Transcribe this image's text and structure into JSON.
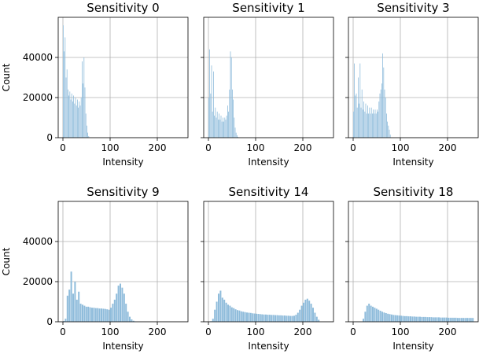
{
  "chart_data": [
    {
      "type": "bar",
      "title": "Sensitivity 0",
      "xlabel": "Intensity",
      "ylabel": "Count",
      "xlim": [
        -10,
        265
      ],
      "ylim": [
        0,
        60000
      ],
      "xticks": [
        "0",
        "100",
        "200"
      ],
      "yticks": [
        "0",
        "20000",
        "40000"
      ],
      "grid": true,
      "bin_width": 2,
      "bins": [
        {
          "x": 0,
          "y": 56000
        },
        {
          "x": 2,
          "y": 43000
        },
        {
          "x": 4,
          "y": 50000
        },
        {
          "x": 6,
          "y": 30000
        },
        {
          "x": 8,
          "y": 34000
        },
        {
          "x": 10,
          "y": 24000
        },
        {
          "x": 12,
          "y": 21000
        },
        {
          "x": 14,
          "y": 23000
        },
        {
          "x": 16,
          "y": 19000
        },
        {
          "x": 18,
          "y": 22000
        },
        {
          "x": 20,
          "y": 18000
        },
        {
          "x": 22,
          "y": 21000
        },
        {
          "x": 24,
          "y": 17000
        },
        {
          "x": 26,
          "y": 20000
        },
        {
          "x": 28,
          "y": 16000
        },
        {
          "x": 30,
          "y": 19000
        },
        {
          "x": 32,
          "y": 15000
        },
        {
          "x": 34,
          "y": 18000
        },
        {
          "x": 36,
          "y": 16000
        },
        {
          "x": 38,
          "y": 20000
        },
        {
          "x": 40,
          "y": 38000
        },
        {
          "x": 42,
          "y": 27000
        },
        {
          "x": 44,
          "y": 40000
        },
        {
          "x": 46,
          "y": 25000
        },
        {
          "x": 48,
          "y": 12000
        },
        {
          "x": 50,
          "y": 6000
        },
        {
          "x": 52,
          "y": 2500
        },
        {
          "x": 54,
          "y": 800
        }
      ]
    },
    {
      "type": "bar",
      "title": "Sensitivity 1",
      "xlabel": "Intensity",
      "ylabel": "",
      "xlim": [
        -10,
        265
      ],
      "ylim": [
        0,
        60000
      ],
      "xticks": [
        "0",
        "100",
        "200"
      ],
      "yticks": [],
      "grid": true,
      "bin_width": 2,
      "bins": [
        {
          "x": 0,
          "y": 20000
        },
        {
          "x": 2,
          "y": 44000
        },
        {
          "x": 4,
          "y": 22000
        },
        {
          "x": 6,
          "y": 36000
        },
        {
          "x": 8,
          "y": 13000
        },
        {
          "x": 10,
          "y": 33000
        },
        {
          "x": 12,
          "y": 11000
        },
        {
          "x": 14,
          "y": 15000
        },
        {
          "x": 16,
          "y": 10000
        },
        {
          "x": 18,
          "y": 13000
        },
        {
          "x": 20,
          "y": 9000
        },
        {
          "x": 22,
          "y": 12000
        },
        {
          "x": 24,
          "y": 9000
        },
        {
          "x": 26,
          "y": 11000
        },
        {
          "x": 28,
          "y": 8000
        },
        {
          "x": 30,
          "y": 10000
        },
        {
          "x": 32,
          "y": 8000
        },
        {
          "x": 34,
          "y": 10000
        },
        {
          "x": 36,
          "y": 9000
        },
        {
          "x": 38,
          "y": 11000
        },
        {
          "x": 40,
          "y": 16000
        },
        {
          "x": 42,
          "y": 13000
        },
        {
          "x": 44,
          "y": 24000
        },
        {
          "x": 46,
          "y": 43000
        },
        {
          "x": 48,
          "y": 40000
        },
        {
          "x": 50,
          "y": 24000
        },
        {
          "x": 52,
          "y": 19000
        },
        {
          "x": 54,
          "y": 10000
        },
        {
          "x": 56,
          "y": 5000
        },
        {
          "x": 58,
          "y": 2500
        },
        {
          "x": 60,
          "y": 1200
        },
        {
          "x": 62,
          "y": 400
        }
      ]
    },
    {
      "type": "bar",
      "title": "Sensitivity 3",
      "xlabel": "Intensity",
      "ylabel": "",
      "xlim": [
        -10,
        265
      ],
      "ylim": [
        0,
        60000
      ],
      "xticks": [
        "0",
        "100",
        "200"
      ],
      "yticks": [],
      "grid": true,
      "bin_width": 2,
      "bins": [
        {
          "x": 0,
          "y": 13000
        },
        {
          "x": 2,
          "y": 37000
        },
        {
          "x": 4,
          "y": 21000
        },
        {
          "x": 6,
          "y": 22000
        },
        {
          "x": 8,
          "y": 15000
        },
        {
          "x": 10,
          "y": 30000
        },
        {
          "x": 12,
          "y": 17000
        },
        {
          "x": 14,
          "y": 37000
        },
        {
          "x": 16,
          "y": 15000
        },
        {
          "x": 18,
          "y": 24000
        },
        {
          "x": 20,
          "y": 14000
        },
        {
          "x": 22,
          "y": 18000
        },
        {
          "x": 24,
          "y": 13000
        },
        {
          "x": 26,
          "y": 17000
        },
        {
          "x": 28,
          "y": 12000
        },
        {
          "x": 30,
          "y": 16000
        },
        {
          "x": 32,
          "y": 12000
        },
        {
          "x": 34,
          "y": 15000
        },
        {
          "x": 36,
          "y": 12000
        },
        {
          "x": 38,
          "y": 15000
        },
        {
          "x": 40,
          "y": 12000
        },
        {
          "x": 42,
          "y": 14000
        },
        {
          "x": 44,
          "y": 12000
        },
        {
          "x": 46,
          "y": 14000
        },
        {
          "x": 48,
          "y": 12000
        },
        {
          "x": 50,
          "y": 14000
        },
        {
          "x": 52,
          "y": 13000
        },
        {
          "x": 54,
          "y": 18000
        },
        {
          "x": 56,
          "y": 22000
        },
        {
          "x": 58,
          "y": 24000
        },
        {
          "x": 60,
          "y": 27000
        },
        {
          "x": 62,
          "y": 42000
        },
        {
          "x": 64,
          "y": 35000
        },
        {
          "x": 66,
          "y": 24000
        },
        {
          "x": 68,
          "y": 20000
        },
        {
          "x": 70,
          "y": 12000
        },
        {
          "x": 72,
          "y": 8000
        },
        {
          "x": 74,
          "y": 6000
        },
        {
          "x": 76,
          "y": 4000
        },
        {
          "x": 78,
          "y": 1500
        }
      ]
    },
    {
      "type": "bar",
      "title": "Sensitivity 9",
      "xlabel": "Intensity",
      "ylabel": "Count",
      "xlim": [
        -10,
        265
      ],
      "ylim": [
        0,
        60000
      ],
      "xticks": [
        "0",
        "100",
        "200"
      ],
      "yticks": [
        "0",
        "20000",
        "40000"
      ],
      "grid": true,
      "bin_width": 4,
      "bins": [
        {
          "x": 0,
          "y": 400
        },
        {
          "x": 4,
          "y": 1500
        },
        {
          "x": 8,
          "y": 13000
        },
        {
          "x": 12,
          "y": 16000
        },
        {
          "x": 16,
          "y": 25000
        },
        {
          "x": 20,
          "y": 14000
        },
        {
          "x": 24,
          "y": 20000
        },
        {
          "x": 28,
          "y": 11000
        },
        {
          "x": 32,
          "y": 15000
        },
        {
          "x": 36,
          "y": 9000
        },
        {
          "x": 40,
          "y": 8500
        },
        {
          "x": 44,
          "y": 8000
        },
        {
          "x": 48,
          "y": 7500
        },
        {
          "x": 52,
          "y": 7500
        },
        {
          "x": 56,
          "y": 7200
        },
        {
          "x": 60,
          "y": 7000
        },
        {
          "x": 64,
          "y": 7000
        },
        {
          "x": 68,
          "y": 6800
        },
        {
          "x": 72,
          "y": 6800
        },
        {
          "x": 76,
          "y": 6600
        },
        {
          "x": 80,
          "y": 6600
        },
        {
          "x": 84,
          "y": 6500
        },
        {
          "x": 88,
          "y": 6400
        },
        {
          "x": 92,
          "y": 6200
        },
        {
          "x": 96,
          "y": 6000
        },
        {
          "x": 100,
          "y": 7000
        },
        {
          "x": 104,
          "y": 9000
        },
        {
          "x": 108,
          "y": 11000
        },
        {
          "x": 112,
          "y": 14000
        },
        {
          "x": 116,
          "y": 18000
        },
        {
          "x": 120,
          "y": 19000
        },
        {
          "x": 124,
          "y": 17000
        },
        {
          "x": 128,
          "y": 14000
        },
        {
          "x": 132,
          "y": 9000
        },
        {
          "x": 136,
          "y": 5000
        },
        {
          "x": 140,
          "y": 2500
        },
        {
          "x": 144,
          "y": 1200
        },
        {
          "x": 148,
          "y": 500
        },
        {
          "x": 152,
          "y": 200
        }
      ]
    },
    {
      "type": "bar",
      "title": "Sensitivity 14",
      "xlabel": "Intensity",
      "ylabel": "",
      "xlim": [
        -10,
        265
      ],
      "ylim": [
        0,
        60000
      ],
      "xticks": [
        "0",
        "100",
        "200"
      ],
      "yticks": [],
      "grid": true,
      "bin_width": 4,
      "bins": [
        {
          "x": 4,
          "y": 300
        },
        {
          "x": 8,
          "y": 1500
        },
        {
          "x": 12,
          "y": 6000
        },
        {
          "x": 16,
          "y": 10000
        },
        {
          "x": 20,
          "y": 14000
        },
        {
          "x": 24,
          "y": 15500
        },
        {
          "x": 28,
          "y": 12000
        },
        {
          "x": 32,
          "y": 11000
        },
        {
          "x": 36,
          "y": 9500
        },
        {
          "x": 40,
          "y": 8500
        },
        {
          "x": 44,
          "y": 8000
        },
        {
          "x": 48,
          "y": 7200
        },
        {
          "x": 52,
          "y": 6800
        },
        {
          "x": 56,
          "y": 6200
        },
        {
          "x": 60,
          "y": 5800
        },
        {
          "x": 64,
          "y": 5600
        },
        {
          "x": 68,
          "y": 5200
        },
        {
          "x": 72,
          "y": 5000
        },
        {
          "x": 76,
          "y": 4800
        },
        {
          "x": 80,
          "y": 4600
        },
        {
          "x": 84,
          "y": 4500
        },
        {
          "x": 88,
          "y": 4400
        },
        {
          "x": 92,
          "y": 4200
        },
        {
          "x": 96,
          "y": 4100
        },
        {
          "x": 100,
          "y": 4000
        },
        {
          "x": 104,
          "y": 3900
        },
        {
          "x": 108,
          "y": 3800
        },
        {
          "x": 112,
          "y": 3700
        },
        {
          "x": 116,
          "y": 3600
        },
        {
          "x": 120,
          "y": 3600
        },
        {
          "x": 124,
          "y": 3500
        },
        {
          "x": 128,
          "y": 3500
        },
        {
          "x": 132,
          "y": 3400
        },
        {
          "x": 136,
          "y": 3400
        },
        {
          "x": 140,
          "y": 3300
        },
        {
          "x": 144,
          "y": 3300
        },
        {
          "x": 148,
          "y": 3200
        },
        {
          "x": 152,
          "y": 3200
        },
        {
          "x": 156,
          "y": 3100
        },
        {
          "x": 160,
          "y": 3100
        },
        {
          "x": 164,
          "y": 3000
        },
        {
          "x": 168,
          "y": 3000
        },
        {
          "x": 172,
          "y": 2900
        },
        {
          "x": 176,
          "y": 2900
        },
        {
          "x": 180,
          "y": 3000
        },
        {
          "x": 184,
          "y": 3500
        },
        {
          "x": 188,
          "y": 4500
        },
        {
          "x": 192,
          "y": 6000
        },
        {
          "x": 196,
          "y": 8000
        },
        {
          "x": 200,
          "y": 9500
        },
        {
          "x": 204,
          "y": 11000
        },
        {
          "x": 208,
          "y": 11500
        },
        {
          "x": 212,
          "y": 10500
        },
        {
          "x": 216,
          "y": 9000
        },
        {
          "x": 220,
          "y": 7000
        },
        {
          "x": 224,
          "y": 4500
        },
        {
          "x": 228,
          "y": 2500
        },
        {
          "x": 232,
          "y": 1000
        }
      ]
    },
    {
      "type": "bar",
      "title": "Sensitivity 18",
      "xlabel": "Intensity",
      "ylabel": "",
      "xlim": [
        -10,
        265
      ],
      "ylim": [
        0,
        60000
      ],
      "xticks": [
        "0",
        "100",
        "200"
      ],
      "yticks": [],
      "grid": true,
      "bin_width": 4,
      "bins": [
        {
          "x": 20,
          "y": 1500
        },
        {
          "x": 24,
          "y": 5000
        },
        {
          "x": 28,
          "y": 8000
        },
        {
          "x": 32,
          "y": 9000
        },
        {
          "x": 36,
          "y": 8000
        },
        {
          "x": 40,
          "y": 7500
        },
        {
          "x": 44,
          "y": 7000
        },
        {
          "x": 48,
          "y": 6500
        },
        {
          "x": 52,
          "y": 6000
        },
        {
          "x": 56,
          "y": 5500
        },
        {
          "x": 60,
          "y": 5000
        },
        {
          "x": 64,
          "y": 4600
        },
        {
          "x": 68,
          "y": 4300
        },
        {
          "x": 72,
          "y": 4000
        },
        {
          "x": 76,
          "y": 3800
        },
        {
          "x": 80,
          "y": 3600
        },
        {
          "x": 84,
          "y": 3400
        },
        {
          "x": 88,
          "y": 3300
        },
        {
          "x": 92,
          "y": 3200
        },
        {
          "x": 96,
          "y": 3100
        },
        {
          "x": 100,
          "y": 3000
        },
        {
          "x": 104,
          "y": 2900
        },
        {
          "x": 108,
          "y": 2800
        },
        {
          "x": 112,
          "y": 2800
        },
        {
          "x": 116,
          "y": 2700
        },
        {
          "x": 120,
          "y": 2700
        },
        {
          "x": 124,
          "y": 2600
        },
        {
          "x": 128,
          "y": 2600
        },
        {
          "x": 132,
          "y": 2500
        },
        {
          "x": 136,
          "y": 2500
        },
        {
          "x": 140,
          "y": 2500
        },
        {
          "x": 144,
          "y": 2400
        },
        {
          "x": 148,
          "y": 2400
        },
        {
          "x": 152,
          "y": 2400
        },
        {
          "x": 156,
          "y": 2300
        },
        {
          "x": 160,
          "y": 2300
        },
        {
          "x": 164,
          "y": 2300
        },
        {
          "x": 168,
          "y": 2200
        },
        {
          "x": 172,
          "y": 2200
        },
        {
          "x": 176,
          "y": 2200
        },
        {
          "x": 180,
          "y": 2200
        },
        {
          "x": 184,
          "y": 2100
        },
        {
          "x": 188,
          "y": 2100
        },
        {
          "x": 192,
          "y": 2100
        },
        {
          "x": 196,
          "y": 2100
        },
        {
          "x": 200,
          "y": 2000
        },
        {
          "x": 204,
          "y": 2000
        },
        {
          "x": 208,
          "y": 2000
        },
        {
          "x": 212,
          "y": 2000
        },
        {
          "x": 216,
          "y": 2000
        },
        {
          "x": 220,
          "y": 1900
        },
        {
          "x": 224,
          "y": 1900
        },
        {
          "x": 228,
          "y": 1900
        },
        {
          "x": 232,
          "y": 1900
        },
        {
          "x": 236,
          "y": 1900
        },
        {
          "x": 240,
          "y": 1900
        },
        {
          "x": 244,
          "y": 1900
        },
        {
          "x": 248,
          "y": 1900
        },
        {
          "x": 252,
          "y": 1900
        }
      ]
    }
  ],
  "colors": {
    "bar": "#8fbcdb",
    "grid": "#b0b0b0",
    "axis": "#000000",
    "background": "#ffffff"
  }
}
